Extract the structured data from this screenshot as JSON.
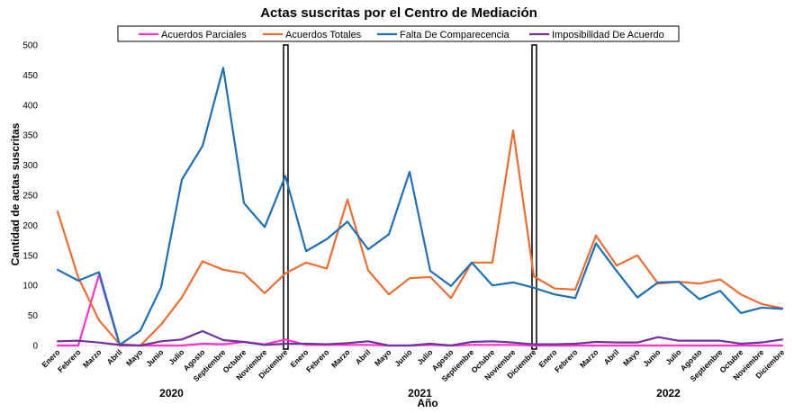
{
  "chart_data": {
    "type": "line",
    "title": "Actas suscritas por el Centro de Mediación",
    "xlabel": "Año",
    "ylabel": "Cantidad de actas suscritas",
    "ylim": [
      0,
      500
    ],
    "yticks": [
      0,
      50,
      100,
      150,
      200,
      250,
      300,
      350,
      400,
      450,
      500
    ],
    "grid": false,
    "legend_position": "top",
    "years": [
      "2020",
      "2021",
      "2022"
    ],
    "categories": [
      "Enero",
      "Febrero",
      "Marzo",
      "Abril",
      "Mayo",
      "Junio",
      "Julio",
      "Agosto",
      "Septiembre",
      "Octubre",
      "Noviembre",
      "Diciembre",
      "Enero",
      "Febrero",
      "Marzo",
      "Abril",
      "Mayo",
      "Junio",
      "Julio",
      "Agosto",
      "Septiembre",
      "Octubre",
      "Noviembre",
      "Diciembre",
      "Enero",
      "Febrero",
      "Marzo",
      "Abril",
      "Mayo",
      "Junio",
      "Julio",
      "Agosto",
      "Septiembre",
      "Octubre",
      "Noviembre",
      "Diciembre"
    ],
    "series": [
      {
        "name": "Acuerdos Parciales",
        "color": "#ff33cc",
        "values": [
          0,
          0,
          118,
          0,
          0,
          0,
          0,
          3,
          2,
          6,
          2,
          10,
          1,
          1,
          1,
          1,
          0,
          0,
          1,
          0,
          1,
          1,
          1,
          0,
          0,
          0,
          0,
          0,
          0,
          0,
          0,
          0,
          0,
          0,
          0,
          0
        ]
      },
      {
        "name": "Acuerdos Totales",
        "color": "#ed6d31",
        "values": [
          223,
          113,
          42,
          2,
          0,
          35,
          80,
          140,
          126,
          120,
          87,
          120,
          138,
          128,
          243,
          125,
          85,
          112,
          114,
          79,
          138,
          138,
          358,
          115,
          95,
          93,
          183,
          133,
          150,
          103,
          106,
          103,
          110,
          85,
          69,
          62
        ]
      },
      {
        "name": "Falta De Comparecencia",
        "color": "#1f6fb5",
        "values": [
          126,
          108,
          122,
          1,
          25,
          97,
          276,
          332,
          462,
          237,
          197,
          282,
          157,
          177,
          206,
          160,
          185,
          289,
          124,
          99,
          138,
          100,
          105,
          96,
          85,
          79,
          170,
          124,
          80,
          105,
          106,
          77,
          91,
          54,
          63,
          61
        ]
      },
      {
        "name": "Imposibilidad De Acuerdo",
        "color": "#7030a0",
        "values": [
          7,
          8,
          5,
          1,
          0,
          7,
          10,
          24,
          9,
          6,
          1,
          3,
          3,
          2,
          4,
          7,
          0,
          0,
          3,
          0,
          6,
          7,
          5,
          2,
          2,
          3,
          6,
          5,
          5,
          14,
          8,
          8,
          8,
          3,
          5,
          10
        ]
      }
    ],
    "year_separators_after_index": [
      11,
      23
    ]
  }
}
